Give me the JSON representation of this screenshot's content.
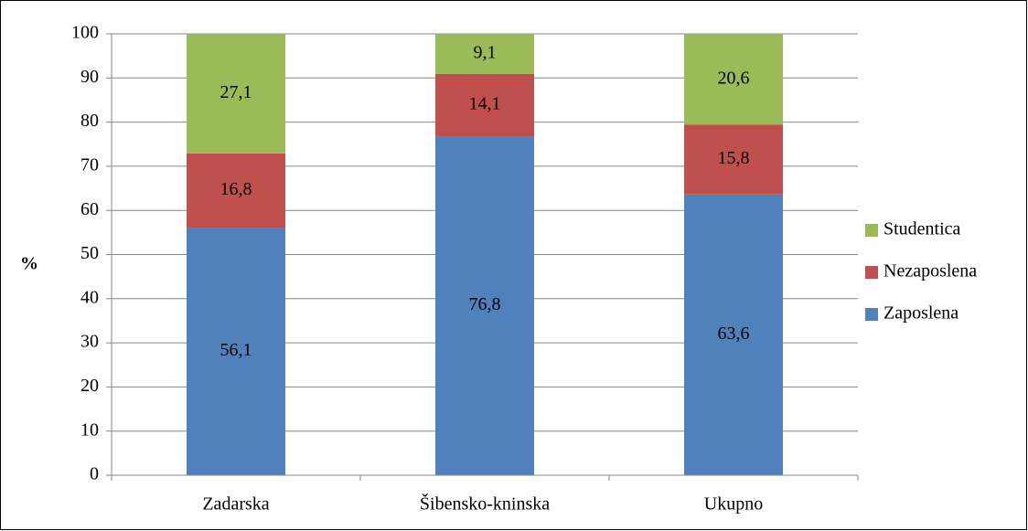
{
  "chart_data": {
    "type": "stacked_bar",
    "y_label": "%",
    "categories": [
      "Zadarska",
      "Šibensko-kninska",
      "Ukupno"
    ],
    "series": [
      {
        "name": "Zaposlena",
        "color": "#4f81bd",
        "values": [
          56.1,
          76.8,
          63.6
        ],
        "value_labels": [
          "56,1",
          "76,8",
          "63,6"
        ]
      },
      {
        "name": "Nezaposlena",
        "color": "#c0504d",
        "values": [
          16.8,
          14.1,
          15.8
        ],
        "value_labels": [
          "16,8",
          "14,1",
          "15,8"
        ]
      },
      {
        "name": "Studentica",
        "color": "#9bbb59",
        "values": [
          27.1,
          9.1,
          20.6
        ],
        "value_labels": [
          "27,1",
          "9,1",
          "20,6"
        ]
      }
    ],
    "ylim": [
      0,
      100
    ],
    "yticks": [
      0,
      10,
      20,
      30,
      40,
      50,
      60,
      70,
      80,
      90,
      100
    ],
    "grid": true,
    "legend": "right"
  }
}
